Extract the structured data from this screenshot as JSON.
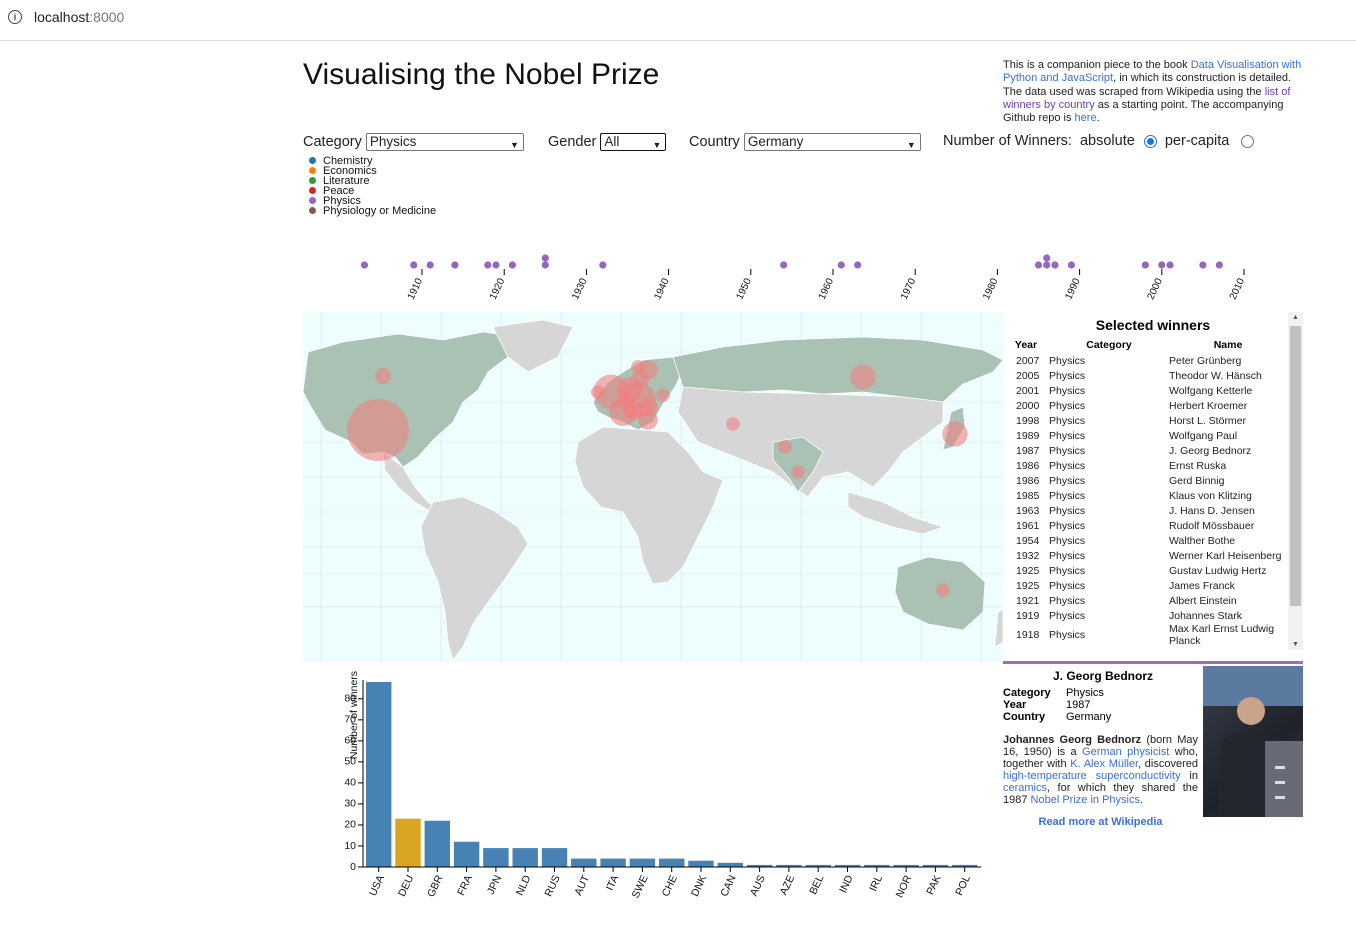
{
  "browser": {
    "host": "localhost",
    "port": ":8000"
  },
  "page_title": "Visualising the Nobel Prize",
  "intro": {
    "t1": "This is a companion piece to the book ",
    "l1": "Data Visualisation with Python and JavaScript",
    "t2": ", in which its construction is detailed. The data used was scraped from Wikipedia using the ",
    "l2": "list of winners by country",
    "t3": " as a starting point. The accompanying Github repo is ",
    "l3": "here",
    "t4": "."
  },
  "filters": {
    "category_label": "Category",
    "category_value": "Physics",
    "gender_label": "Gender",
    "gender_value": "All",
    "country_label": "Country",
    "country_value": "Germany",
    "winners_label": "Number of Winners:",
    "absolute_label": "absolute",
    "percapita_label": "per-capita",
    "selected_mode": "absolute"
  },
  "legend": [
    {
      "label": "Chemistry",
      "color": "#1f77b4"
    },
    {
      "label": "Economics",
      "color": "#ff7f0e"
    },
    {
      "label": "Literature",
      "color": "#2ca02c"
    },
    {
      "label": "Peace",
      "color": "#d62728"
    },
    {
      "label": "Physics",
      "color": "#9467bd"
    },
    {
      "label": "Physiology or Medicine",
      "color": "#8c564b"
    }
  ],
  "timeline": {
    "ticks": [
      "1910",
      "1920",
      "1930",
      "1940",
      "1950",
      "1960",
      "1970",
      "1980",
      "1990",
      "2000",
      "2010"
    ],
    "color": "#9467bd",
    "years": [
      1903,
      1909,
      1911,
      1914,
      1918,
      1919,
      1921,
      1925,
      1925,
      1932,
      1954,
      1961,
      1963,
      1985,
      1986,
      1986,
      1987,
      1989,
      1998,
      2000,
      2001,
      2005,
      2007
    ]
  },
  "selected_winners": {
    "title": "Selected winners",
    "headers": [
      "Year",
      "Category",
      "Name"
    ],
    "rows": [
      [
        "2007",
        "Physics",
        "Peter Grünberg"
      ],
      [
        "2005",
        "Physics",
        "Theodor W. Hänsch"
      ],
      [
        "2001",
        "Physics",
        "Wolfgang Ketterle"
      ],
      [
        "2000",
        "Physics",
        "Herbert Kroemer"
      ],
      [
        "1998",
        "Physics",
        "Horst L. Störmer"
      ],
      [
        "1989",
        "Physics",
        "Wolfgang Paul"
      ],
      [
        "1987",
        "Physics",
        "J. Georg Bednorz"
      ],
      [
        "1986",
        "Physics",
        "Ernst Ruska"
      ],
      [
        "1986",
        "Physics",
        "Gerd Binnig"
      ],
      [
        "1985",
        "Physics",
        "Klaus von Klitzing"
      ],
      [
        "1963",
        "Physics",
        "J. Hans D. Jensen"
      ],
      [
        "1961",
        "Physics",
        "Rudolf Mössbauer"
      ],
      [
        "1954",
        "Physics",
        "Walther Bothe"
      ],
      [
        "1932",
        "Physics",
        "Werner Karl Heisenberg"
      ],
      [
        "1925",
        "Physics",
        "Gustav Ludwig Hertz"
      ],
      [
        "1925",
        "Physics",
        "James Franck"
      ],
      [
        "1921",
        "Physics",
        "Albert Einstein"
      ],
      [
        "1919",
        "Physics",
        "Johannes Stark"
      ],
      [
        "1918",
        "Physics",
        "Max Karl Ernst Ludwig Planck"
      ]
    ]
  },
  "bio": {
    "name": "J. Georg Bednorz",
    "category_label": "Category",
    "category": "Physics",
    "year_label": "Year",
    "year": "1987",
    "country_label": "Country",
    "country": "Germany",
    "p1": "Johannes Georg Bednorz",
    "p2": " (born May 16, 1950) is a ",
    "l1": "German physicist",
    "p3": " who, together with ",
    "l2": "K. Alex Müller",
    "p4": ", discovered ",
    "l3": "high-temperature superconductivity",
    "p5": " in ",
    "l4": "ceramics",
    "p6": ", for which they shared the 1987 ",
    "l5": "Nobel Prize in Physics",
    "p7": ".",
    "read_more": "Read more at Wikipedia"
  },
  "chart_data": {
    "type": "bar",
    "categories": [
      "USA",
      "DEU",
      "GBR",
      "FRA",
      "JPN",
      "NLD",
      "RUS",
      "AUT",
      "ITA",
      "SWE",
      "CHE",
      "DNK",
      "CAN",
      "AUS",
      "AZE",
      "BEL",
      "IND",
      "IRL",
      "NOR",
      "PAK",
      "POL"
    ],
    "values": [
      88,
      23,
      22,
      12,
      9,
      9,
      9,
      4,
      4,
      4,
      4,
      3,
      2,
      1,
      1,
      1,
      1,
      1,
      1,
      1,
      1
    ],
    "highlight": "DEU",
    "ylabel": "Number of winners",
    "yticks": [
      0,
      10,
      20,
      30,
      40,
      50,
      60,
      70,
      80
    ],
    "ylim": [
      0,
      88
    ],
    "bar_color": "#4682b4",
    "highlight_color": "#daa520"
  },
  "map": {
    "land_color": "#d6d6d6",
    "selected_land_color": "#a9c2b4",
    "ocean_color": "#eefefe",
    "bubble_color": "#f08080"
  }
}
